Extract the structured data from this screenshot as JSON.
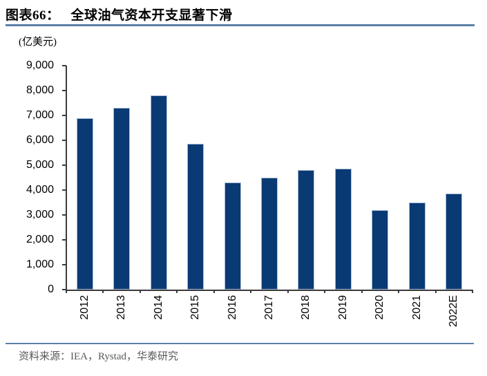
{
  "header": {
    "label": "图表66：",
    "title": "全球油气资本开支显著下滑"
  },
  "unit_label": "(亿美元)",
  "source": {
    "text": "资料来源：IEA，Rystad，华泰研究"
  },
  "colors": {
    "bar": "#0a3a73",
    "bar_border": "#a9bed9",
    "rule": "#5b80a9",
    "axis": "#3a3a3a",
    "source_text": "#595959"
  },
  "chart_data": {
    "type": "bar",
    "title": "全球油气资本开支显著下滑",
    "unit": "亿美元",
    "categories": [
      "2012",
      "2013",
      "2014",
      "2015",
      "2016",
      "2017",
      "2018",
      "2019",
      "2020",
      "2021",
      "2022E"
    ],
    "values": [
      6900,
      7300,
      7800,
      5850,
      4300,
      4500,
      4800,
      4850,
      3200,
      3500,
      3850
    ],
    "ylim": [
      0,
      9000
    ],
    "yticks": [
      0,
      1000,
      2000,
      3000,
      4000,
      5000,
      6000,
      7000,
      8000,
      9000
    ],
    "xlabel": "",
    "ylabel": "",
    "grid": false,
    "legend": false,
    "x_label_rotation": -90
  }
}
